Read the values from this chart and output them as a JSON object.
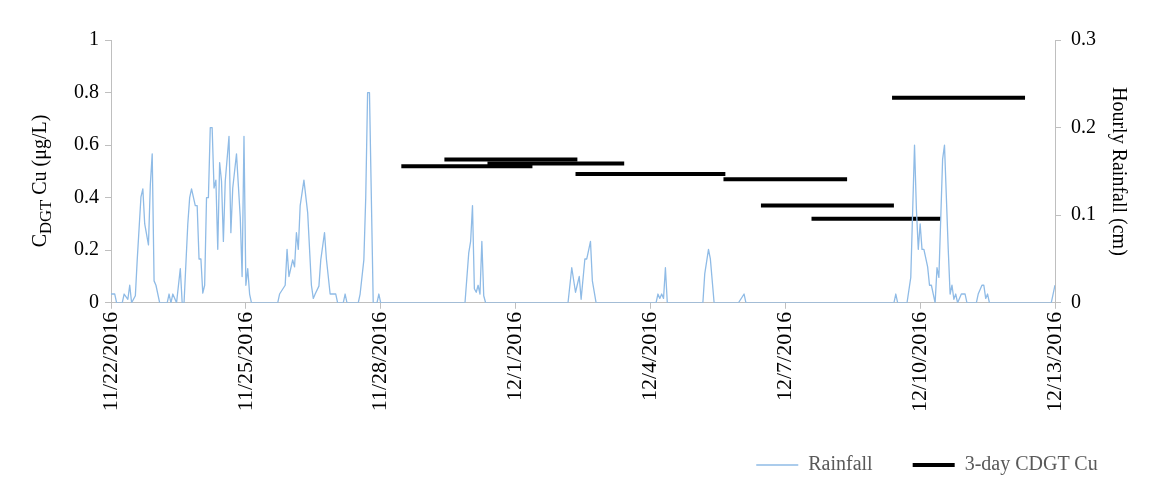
{
  "chart_data": {
    "type": "line",
    "ylabel": "C$_{DGT}$ Cu (μg/L)",
    "y2label": "Hourly Rainfall (cm)",
    "legend": "bottom right",
    "marker": "none",
    "xlim": [
      "2016-11-22",
      "2016-12-13"
    ],
    "xticks": [
      {
        "value": "2016-11-22",
        "label": "11/22/2016"
      },
      {
        "value": "2016-11-25",
        "label": "11/25/2016"
      },
      {
        "value": "2016-11-28",
        "label": "11/28/2016"
      },
      {
        "value": "2016-12-01",
        "label": "12/1/2016"
      },
      {
        "value": "2016-12-04",
        "label": "12/4/2016"
      },
      {
        "value": "2016-12-07",
        "label": "12/7/2016"
      },
      {
        "value": "2016-12-10",
        "label": "12/10/2016"
      },
      {
        "value": "2016-12-13",
        "label": "12/13/2016"
      }
    ],
    "ylim": [
      0,
      1
    ],
    "yticks": [
      0,
      0.2,
      0.4,
      0.6,
      0.8,
      1
    ],
    "y2lim": [
      0,
      0.3
    ],
    "y2ticks": [
      0,
      0.1,
      0.2,
      0.3
    ],
    "series": [
      {
        "name": "Rainfall",
        "color": "#8fbbe6",
        "axis": "y2",
        "x": [
          "2016-11-22T00:00",
          "2016-11-22T02:00",
          "2016-11-22T03:00",
          "2016-11-22T06:00",
          "2016-11-22T07:00",
          "2016-11-22T09:00",
          "2016-11-22T10:00",
          "2016-11-22T11:00",
          "2016-11-22T13:00",
          "2016-11-22T14:00",
          "2016-11-22T16:00",
          "2016-11-22T17:00",
          "2016-11-22T18:00",
          "2016-11-22T20:00",
          "2016-11-22T21:00",
          "2016-11-22T22:00",
          "2016-11-22T23:00",
          "2016-11-23T00:00",
          "2016-11-23T02:00",
          "2016-11-23T06:00",
          "2016-11-23T07:00",
          "2016-11-23T08:00",
          "2016-11-23T09:00",
          "2016-11-23T11:00",
          "2016-11-23T13:00",
          "2016-11-23T14:00",
          "2016-11-23T15:00",
          "2016-11-23T17:00",
          "2016-11-23T18:00",
          "2016-11-23T19:00",
          "2016-11-23T21:00",
          "2016-11-23T22:00",
          "2016-11-23T23:00",
          "2016-11-24T00:00",
          "2016-11-24T01:00",
          "2016-11-24T02:00",
          "2016-11-24T03:00",
          "2016-11-24T04:00",
          "2016-11-24T05:00",
          "2016-11-24T06:00",
          "2016-11-24T07:00",
          "2016-11-24T08:00",
          "2016-11-24T09:00",
          "2016-11-24T10:00",
          "2016-11-24T11:00",
          "2016-11-24T12:00",
          "2016-11-24T13:00",
          "2016-11-24T15:00",
          "2016-11-24T16:00",
          "2016-11-24T17:00",
          "2016-11-24T19:00",
          "2016-11-24T21:00",
          "2016-11-24T22:00",
          "2016-11-24T23:00",
          "2016-11-25T00:00",
          "2016-11-25T01:00",
          "2016-11-25T02:00",
          "2016-11-25T03:00",
          "2016-11-25T17:00",
          "2016-11-25T18:00",
          "2016-11-25T21:00",
          "2016-11-25T22:00",
          "2016-11-25T23:00",
          "2016-11-26T01:00",
          "2016-11-26T02:00",
          "2016-11-26T03:00",
          "2016-11-26T04:00",
          "2016-11-26T05:00",
          "2016-11-26T07:00",
          "2016-11-26T09:00",
          "2016-11-26T11:00",
          "2016-11-26T12:00",
          "2016-11-26T13:00",
          "2016-11-26T15:00",
          "2016-11-26T16:00",
          "2016-11-26T18:00",
          "2016-11-26T19:00",
          "2016-11-26T21:00",
          "2016-11-27T00:00",
          "2016-11-27T01:00",
          "2016-11-27T04:00",
          "2016-11-27T05:00",
          "2016-11-27T06:00",
          "2016-11-27T12:00",
          "2016-11-27T13:00",
          "2016-11-27T15:00",
          "2016-11-27T16:00",
          "2016-11-27T17:00",
          "2016-11-27T18:00",
          "2016-11-27T20:00",
          "2016-11-27T22:00",
          "2016-11-27T23:00",
          "2016-11-28T00:00",
          "2016-11-29T21:00",
          "2016-11-29T23:00",
          "2016-11-30T00:00",
          "2016-11-30T01:00",
          "2016-11-30T02:00",
          "2016-11-30T03:00",
          "2016-11-30T04:00",
          "2016-11-30T05:00",
          "2016-11-30T06:00",
          "2016-11-30T07:00",
          "2016-11-30T08:00",
          "2016-12-02T04:00",
          "2016-12-02T06:00",
          "2016-12-02T08:00",
          "2016-12-02T10:00",
          "2016-12-02T11:00",
          "2016-12-02T13:00",
          "2016-12-02T14:00",
          "2016-12-02T16:00",
          "2016-12-02T17:00",
          "2016-12-02T19:00",
          "2016-12-04T03:00",
          "2016-12-04T04:00",
          "2016-12-04T05:00",
          "2016-12-04T06:00",
          "2016-12-04T07:00",
          "2016-12-04T08:00",
          "2016-12-04T09:00",
          "2016-12-05T04:00",
          "2016-12-05T05:00",
          "2016-12-05T07:00",
          "2016-12-05T08:00",
          "2016-12-05T10:00",
          "2016-12-05T23:00",
          "2016-12-06T02:00",
          "2016-12-06T03:00",
          "2016-12-09T10:00",
          "2016-12-09T11:00",
          "2016-12-09T12:00",
          "2016-12-09T17:00",
          "2016-12-09T19:00",
          "2016-12-09T21:00",
          "2016-12-09T22:00",
          "2016-12-09T23:00",
          "2016-12-10T00:00",
          "2016-12-10T01:00",
          "2016-12-10T02:00",
          "2016-12-10T04:00",
          "2016-12-10T05:00",
          "2016-12-10T06:00",
          "2016-12-10T08:00",
          "2016-12-10T09:00",
          "2016-12-10T10:00",
          "2016-12-10T12:00",
          "2016-12-10T13:00",
          "2016-12-10T15:00",
          "2016-12-10T16:00",
          "2016-12-10T17:00",
          "2016-12-10T18:00",
          "2016-12-10T19:00",
          "2016-12-10T20:00",
          "2016-12-10T22:00",
          "2016-12-11T00:00",
          "2016-12-11T01:00",
          "2016-12-11T06:00",
          "2016-12-11T07:00",
          "2016-12-11T09:00",
          "2016-12-11T10:00",
          "2016-12-11T11:00",
          "2016-12-11T12:00",
          "2016-12-11T13:00",
          "2016-12-12T22:00",
          "2016-12-13T00:00"
        ],
        "values": [
          0.01,
          0.01,
          0,
          0,
          0.01,
          0.004,
          0.02,
          0,
          0.008,
          0.049,
          0.121,
          0.13,
          0.09,
          0.066,
          0.135,
          0.17,
          0.025,
          0.02,
          0,
          0,
          0.01,
          0,
          0.01,
          0,
          0.039,
          0,
          0,
          0.09,
          0.12,
          0.13,
          0.111,
          0.111,
          0.05,
          0.05,
          0.011,
          0.02,
          0.12,
          0.12,
          0.2,
          0.2,
          0.131,
          0.14,
          0.061,
          0.16,
          0.139,
          0.07,
          0.139,
          0.19,
          0.08,
          0.131,
          0.17,
          0.098,
          0.03,
          0.19,
          0.02,
          0.039,
          0.01,
          0,
          0,
          0.01,
          0.02,
          0.061,
          0.03,
          0.049,
          0.041,
          0.08,
          0.061,
          0.111,
          0.14,
          0.103,
          0.02,
          0.005,
          0.01,
          0.019,
          0.049,
          0.08,
          0.05,
          0.01,
          0.01,
          0,
          0,
          0.01,
          0,
          0,
          0.01,
          0.049,
          0.12,
          0.24,
          0.24,
          0,
          0,
          0.01,
          0,
          0,
          0.057,
          0.07,
          0.111,
          0.016,
          0.012,
          0.02,
          0.01,
          0.07,
          0.008,
          0,
          0,
          0.04,
          0.012,
          0.03,
          0.004,
          0.05,
          0.05,
          0.07,
          0.025,
          0,
          0,
          0.01,
          0.005,
          0.01,
          0.005,
          0.04,
          0,
          0,
          0.033,
          0.061,
          0.05,
          0,
          0,
          0.01,
          0,
          0,
          0.01,
          0,
          0,
          0.029,
          0.18,
          0.107,
          0.061,
          0.09,
          0.061,
          0.061,
          0.041,
          0.02,
          0.02,
          0,
          0.04,
          0.029,
          0.164,
          0.18,
          0.061,
          0.01,
          0.02,
          0.004,
          0.01,
          0,
          0.01,
          0.01,
          0,
          0,
          0.01,
          0.02,
          0.02,
          0.005,
          0.01,
          0,
          0,
          0.02
        ]
      },
      {
        "name": "3-day CDGT Cu",
        "color": "#000000",
        "x": [
          "2016-11-28T11:00",
          "2016-12-01T09:00"
        ],
        "values": [
          0.52,
          0.52
        ]
      },
      {
        "color": "#000000",
        "x": [
          "2016-11-29T10:00",
          "2016-12-02T09:00"
        ],
        "values": [
          0.545,
          0.545
        ]
      },
      {
        "color": "#000000",
        "x": [
          "2016-11-30T09:00",
          "2016-12-03T10:00"
        ],
        "values": [
          0.53,
          0.53
        ]
      },
      {
        "color": "#000000",
        "x": [
          "2016-12-02T08:00",
          "2016-12-05T16:00"
        ],
        "values": [
          0.49,
          0.49
        ]
      },
      {
        "color": "#000000",
        "x": [
          "2016-12-05T15:00",
          "2016-12-08T09:00"
        ],
        "values": [
          0.47,
          0.47
        ]
      },
      {
        "color": "#000000",
        "x": [
          "2016-12-06T11:00",
          "2016-12-09T10:00"
        ],
        "values": [
          0.37,
          0.37
        ]
      },
      {
        "color": "#000000",
        "x": [
          "2016-12-07T14:00",
          "2016-12-10T11:00"
        ],
        "values": [
          0.32,
          0.32
        ]
      },
      {
        "color": "#000000",
        "x": [
          "2016-12-09T09:00",
          "2016-12-12T08:00"
        ],
        "values": [
          0.78,
          0.78
        ]
      }
    ]
  }
}
